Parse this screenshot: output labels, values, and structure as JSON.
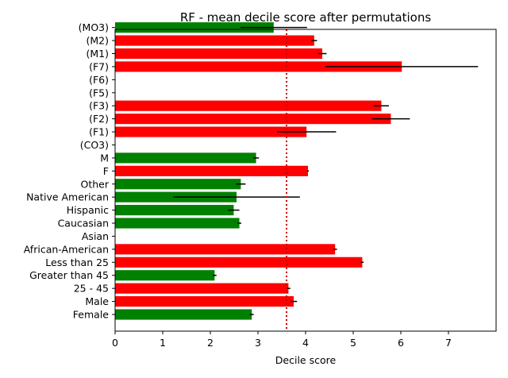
{
  "chart_data": {
    "type": "bar",
    "orientation": "horizontal",
    "title": "RF - mean decile score after permutations",
    "xlabel": "Decile score",
    "ylabel": "",
    "xlim": [
      0,
      8
    ],
    "xticks": [
      0,
      1,
      2,
      3,
      4,
      5,
      6,
      7
    ],
    "reference_line": {
      "value": 3.6,
      "color": "#cc0000",
      "style": "dotted"
    },
    "colors": {
      "above": "#ff0000",
      "below": "#008000",
      "errorbar": "#000000"
    },
    "categories": [
      "Female",
      "Male",
      "25 - 45",
      "Greater than 45",
      "Less than 25",
      "African-American",
      "Asian",
      "Caucasian",
      "Hispanic",
      "Native American",
      "Other",
      "F",
      "M",
      "(CO3)",
      "(F1)",
      "(F2)",
      "(F3)",
      "(F5)",
      "(F6)",
      "(F7)",
      "(M1)",
      "(M2)",
      "(MO3)"
    ],
    "values": [
      2.87,
      3.75,
      3.64,
      2.09,
      5.19,
      4.62,
      null,
      2.61,
      2.49,
      2.55,
      2.64,
      4.05,
      2.96,
      null,
      4.02,
      5.79,
      5.59,
      null,
      null,
      6.02,
      4.35,
      4.18,
      3.33
    ],
    "errors": [
      0.04,
      0.07,
      0.04,
      0.04,
      0.03,
      0.04,
      null,
      0.04,
      0.12,
      1.33,
      0.1,
      0.02,
      0.06,
      null,
      0.62,
      0.4,
      0.16,
      null,
      null,
      1.6,
      0.09,
      0.06,
      0.7
    ]
  }
}
